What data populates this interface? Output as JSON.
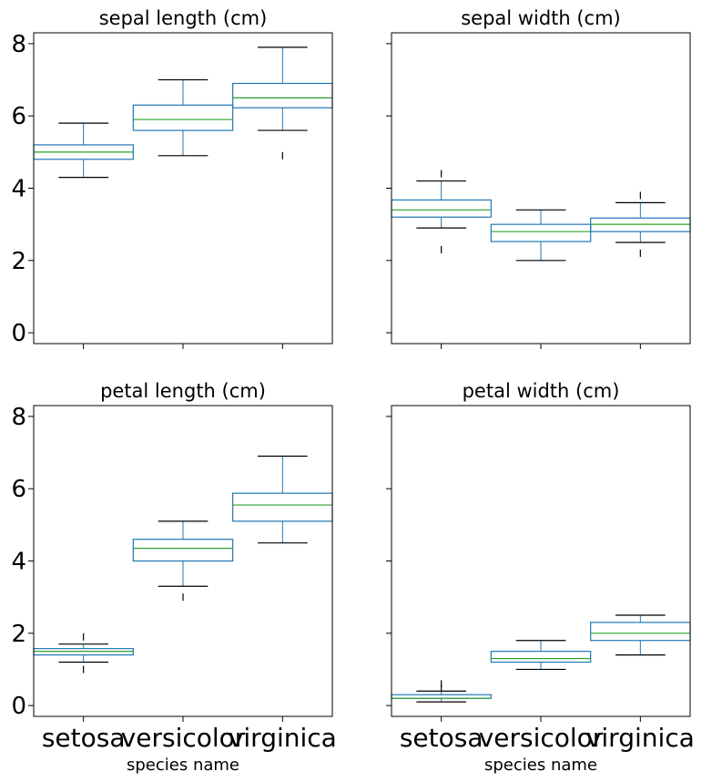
{
  "chart_data": [
    {
      "type": "boxplot",
      "title": "sepal length (cm)",
      "categories": [
        "setosa",
        "versicolor",
        "virginica"
      ],
      "xlabel": "",
      "ylim": [
        -0.3,
        8.3
      ],
      "yticks": [
        "0",
        "2",
        "4",
        "6",
        "8"
      ],
      "show_xticklabels": false,
      "show_yticklabels": true,
      "boxes": [
        {
          "whislo": 4.3,
          "q1": 4.8,
          "med": 5.0,
          "q3": 5.2,
          "whishi": 5.8,
          "fliers": []
        },
        {
          "whislo": 4.9,
          "q1": 5.6,
          "med": 5.9,
          "q3": 6.3,
          "whishi": 7.0,
          "fliers": []
        },
        {
          "whislo": 5.6,
          "q1": 6.225,
          "med": 6.5,
          "q3": 6.9,
          "whishi": 7.9,
          "fliers": [
            4.9
          ]
        }
      ]
    },
    {
      "type": "boxplot",
      "title": "sepal width (cm)",
      "categories": [
        "setosa",
        "versicolor",
        "virginica"
      ],
      "xlabel": "",
      "ylim": [
        -0.3,
        8.3
      ],
      "yticks": [
        "0",
        "2",
        "4",
        "6",
        "8"
      ],
      "show_xticklabels": false,
      "show_yticklabels": false,
      "boxes": [
        {
          "whislo": 2.9,
          "q1": 3.2,
          "med": 3.4,
          "q3": 3.675,
          "whishi": 4.2,
          "fliers": [
            2.3,
            4.4
          ]
        },
        {
          "whislo": 2.0,
          "q1": 2.525,
          "med": 2.8,
          "q3": 3.0,
          "whishi": 3.4,
          "fliers": []
        },
        {
          "whislo": 2.5,
          "q1": 2.8,
          "med": 3.0,
          "q3": 3.175,
          "whishi": 3.6,
          "fliers": [
            2.2,
            3.8
          ]
        }
      ]
    },
    {
      "type": "boxplot",
      "title": "petal length (cm)",
      "categories": [
        "setosa",
        "versicolor",
        "virginica"
      ],
      "xlabel": "species name",
      "ylim": [
        -0.3,
        8.3
      ],
      "yticks": [
        "0",
        "2",
        "4",
        "6",
        "8"
      ],
      "show_xticklabels": true,
      "show_yticklabels": true,
      "boxes": [
        {
          "whislo": 1.2,
          "q1": 1.4,
          "med": 1.5,
          "q3": 1.575,
          "whishi": 1.7,
          "fliers": [
            1.0,
            1.9
          ]
        },
        {
          "whislo": 3.3,
          "q1": 4.0,
          "med": 4.35,
          "q3": 4.6,
          "whishi": 5.1,
          "fliers": [
            3.0
          ]
        },
        {
          "whislo": 4.5,
          "q1": 5.1,
          "med": 5.55,
          "q3": 5.875,
          "whishi": 6.9,
          "fliers": []
        }
      ]
    },
    {
      "type": "boxplot",
      "title": "petal width (cm)",
      "categories": [
        "setosa",
        "versicolor",
        "virginica"
      ],
      "xlabel": "species name",
      "ylim": [
        -0.3,
        8.3
      ],
      "yticks": [
        "0",
        "2",
        "4",
        "6",
        "8"
      ],
      "show_xticklabels": true,
      "show_yticklabels": false,
      "boxes": [
        {
          "whislo": 0.1,
          "q1": 0.2,
          "med": 0.2,
          "q3": 0.3,
          "whishi": 0.4,
          "fliers": [
            0.5,
            0.6
          ]
        },
        {
          "whislo": 1.0,
          "q1": 1.2,
          "med": 1.3,
          "q3": 1.5,
          "whishi": 1.8,
          "fliers": []
        },
        {
          "whislo": 1.4,
          "q1": 1.8,
          "med": 2.0,
          "q3": 2.3,
          "whishi": 2.5,
          "fliers": []
        }
      ]
    }
  ],
  "colors": {
    "box": "#1f77b4",
    "median": "#2ca02c",
    "whisker_cap": "#000000",
    "axes": "#000000"
  }
}
